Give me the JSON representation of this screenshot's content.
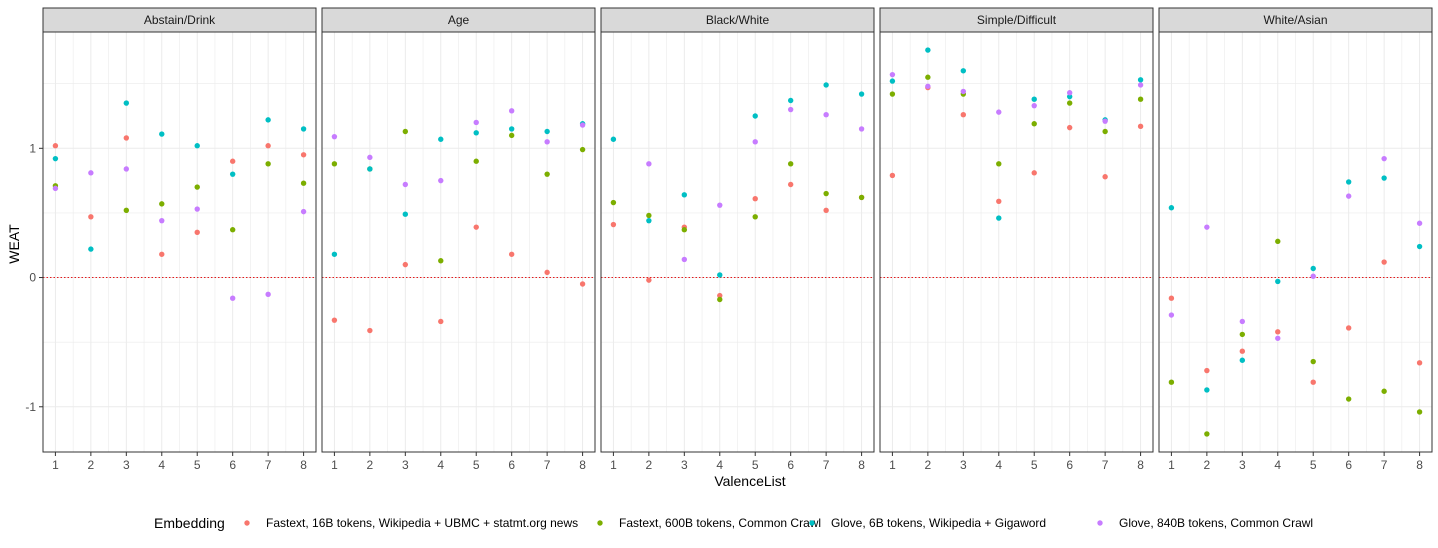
{
  "chart_data": {
    "type": "scatter",
    "xlabel": "ValenceList",
    "ylabel": "WEAT",
    "x_ticks": [
      1,
      2,
      3,
      4,
      5,
      6,
      7,
      8
    ],
    "y_ticks": [
      -1,
      0,
      1
    ],
    "ylim": [
      -1.35,
      1.9
    ],
    "xlim": [
      0.65,
      8.35
    ],
    "grid": true,
    "reference_line": {
      "y": 0,
      "style": "dotted",
      "color": "#E41A1C"
    },
    "legend": {
      "title": "Embedding",
      "position": "bottom",
      "entries": [
        {
          "name": "Fastext, 16B tokens, Wikipedia + UBMC + statmt.org news",
          "color": "#F8766D"
        },
        {
          "name": "Fastext, 600B tokens, Common Crawl",
          "color": "#7CAE00"
        },
        {
          "name": "Glove, 6B tokens, Wikipedia + Gigaword",
          "color": "#00BFC4"
        },
        {
          "name": "Glove, 840B tokens, Common Crawl",
          "color": "#C77CFF"
        }
      ]
    },
    "panels": [
      {
        "title": "Abstain/Drink",
        "series": [
          {
            "name": "Fastext, 16B tokens, Wikipedia + UBMC + statmt.org news",
            "values": [
              1.02,
              0.47,
              1.08,
              0.18,
              0.35,
              0.9,
              1.02,
              0.95
            ]
          },
          {
            "name": "Fastext, 600B tokens, Common Crawl",
            "values": [
              0.71,
              null,
              0.52,
              0.57,
              0.7,
              0.37,
              0.88,
              0.73
            ]
          },
          {
            "name": "Glove, 6B tokens, Wikipedia + Gigaword",
            "values": [
              0.92,
              0.22,
              1.35,
              1.11,
              1.02,
              0.8,
              1.22,
              1.15
            ]
          },
          {
            "name": "Glove, 840B tokens, Common Crawl",
            "values": [
              0.69,
              0.81,
              0.84,
              0.44,
              0.53,
              -0.16,
              -0.13,
              0.51
            ]
          }
        ]
      },
      {
        "title": "Age",
        "series": [
          {
            "name": "Fastext, 16B tokens, Wikipedia + UBMC + statmt.org news",
            "values": [
              -0.33,
              -0.41,
              0.1,
              -0.34,
              0.39,
              0.18,
              0.04,
              -0.05
            ]
          },
          {
            "name": "Fastext, 600B tokens, Common Crawl",
            "values": [
              0.88,
              0.84,
              1.13,
              0.13,
              0.9,
              1.1,
              0.8,
              0.99
            ]
          },
          {
            "name": "Glove, 6B tokens, Wikipedia + Gigaword",
            "values": [
              0.18,
              0.84,
              0.49,
              1.07,
              1.12,
              1.15,
              1.13,
              1.19
            ]
          },
          {
            "name": "Glove, 840B tokens, Common Crawl",
            "values": [
              1.09,
              0.93,
              0.72,
              0.75,
              1.2,
              1.29,
              1.05,
              1.18
            ]
          }
        ]
      },
      {
        "title": "Black/White",
        "series": [
          {
            "name": "Fastext, 16B tokens, Wikipedia + UBMC + statmt.org news",
            "values": [
              0.41,
              -0.02,
              0.39,
              -0.14,
              0.61,
              0.72,
              0.52,
              0.62
            ]
          },
          {
            "name": "Fastext, 600B tokens, Common Crawl",
            "values": [
              0.58,
              0.48,
              0.37,
              -0.17,
              0.47,
              0.88,
              0.65,
              0.62
            ]
          },
          {
            "name": "Glove, 6B tokens, Wikipedia + Gigaword",
            "values": [
              1.07,
              0.44,
              0.64,
              0.02,
              1.25,
              1.37,
              1.49,
              1.42
            ]
          },
          {
            "name": "Glove, 840B tokens, Common Crawl",
            "values": [
              null,
              0.88,
              0.14,
              0.56,
              1.05,
              1.3,
              1.26,
              1.15
            ]
          }
        ]
      },
      {
        "title": "Simple/Difficult",
        "series": [
          {
            "name": "Fastext, 16B tokens, Wikipedia + UBMC + statmt.org news",
            "values": [
              0.79,
              1.47,
              1.26,
              0.59,
              0.81,
              1.16,
              0.78,
              1.17
            ]
          },
          {
            "name": "Fastext, 600B tokens, Common Crawl",
            "values": [
              1.42,
              1.55,
              1.42,
              0.88,
              1.19,
              1.35,
              1.13,
              1.38
            ]
          },
          {
            "name": "Glove, 6B tokens, Wikipedia + Gigaword",
            "values": [
              1.52,
              1.76,
              1.6,
              0.46,
              1.38,
              1.4,
              1.22,
              1.53
            ]
          },
          {
            "name": "Glove, 840B tokens, Common Crawl",
            "values": [
              1.57,
              1.48,
              1.44,
              1.28,
              1.33,
              1.43,
              1.21,
              1.49
            ]
          }
        ]
      },
      {
        "title": "White/Asian",
        "series": [
          {
            "name": "Fastext, 16B tokens, Wikipedia + UBMC + statmt.org news",
            "values": [
              -0.16,
              -0.72,
              -0.57,
              -0.42,
              -0.81,
              -0.39,
              0.12,
              -0.66
            ]
          },
          {
            "name": "Fastext, 600B tokens, Common Crawl",
            "values": [
              -0.81,
              -1.21,
              -0.44,
              0.28,
              -0.65,
              -0.94,
              -0.88,
              -1.04
            ]
          },
          {
            "name": "Glove, 6B tokens, Wikipedia + Gigaword",
            "values": [
              0.54,
              -0.87,
              -0.64,
              -0.03,
              0.07,
              0.74,
              0.77,
              0.24
            ]
          },
          {
            "name": "Glove, 840B tokens, Common Crawl",
            "values": [
              -0.29,
              0.39,
              -0.34,
              -0.47,
              0.01,
              0.63,
              0.92,
              0.42
            ]
          }
        ]
      }
    ]
  }
}
